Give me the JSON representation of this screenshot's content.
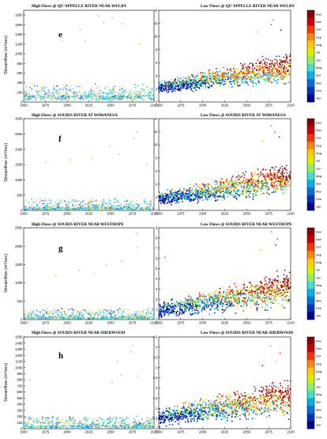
{
  "chart_data": [
    {
      "panel": "e",
      "kind": "high",
      "type": "scatter",
      "title": "High Flows @ QU'APPELLE RIVER NEAR WELBY",
      "ylabel": "Streamflow (m³/sec)",
      "ylim": [
        0,
        1900
      ],
      "yticks": [
        0,
        200,
        400,
        600,
        800,
        1000,
        1200,
        1400,
        1600,
        1800
      ],
      "xlim": [
        1950,
        2100
      ],
      "xticks": [
        1950,
        1975,
        2000,
        2025,
        2050,
        2075,
        2100
      ],
      "base_level": 150,
      "tail": 260,
      "spread": 1.0,
      "outliers": [
        [
          2036,
          1780
        ],
        [
          2052,
          1730
        ],
        [
          2042,
          1650
        ],
        [
          2064,
          1620
        ],
        [
          2015,
          1500
        ],
        [
          1994,
          1270
        ],
        [
          2021,
          1260
        ],
        [
          2083,
          1200
        ]
      ]
    },
    {
      "panel": "e",
      "kind": "low",
      "type": "scatter",
      "title": "Low Flows @ QU'APPELLE RIVER NEAR WELBY",
      "ylim": [
        0,
        14
      ],
      "yticks": [
        0,
        2,
        4,
        6,
        8,
        10,
        12,
        14
      ],
      "xlim": [
        1950,
        2100
      ],
      "xticks": [
        1950,
        1975,
        2000,
        2025,
        2050,
        2075,
        2100
      ],
      "start": 2.2,
      "end": 5.2,
      "spread": 1.3,
      "outliers": [
        [
          2080,
          12.5
        ],
        [
          2078,
          11.8
        ],
        [
          2089,
          11.0
        ],
        [
          2062,
          10.7
        ]
      ]
    },
    {
      "panel": "f",
      "kind": "high",
      "type": "scatter",
      "title": "High Flows @ SOURIS RIVER AT WAWANESA",
      "ylabel": "Streamflow (m³/sec)",
      "ylim": [
        0,
        3000
      ],
      "yticks": [
        0,
        500,
        1000,
        1500,
        2000,
        2500,
        3000
      ],
      "xlim": [
        1950,
        2100
      ],
      "xticks": [
        1950,
        1975,
        2000,
        2025,
        2050,
        2075,
        2100
      ],
      "base_level": 90,
      "tail": 330,
      "spread": 1.0,
      "outliers": [
        [
          2080,
          2560
        ],
        [
          2077,
          2350
        ],
        [
          2049,
          2100
        ],
        [
          2060,
          1830
        ],
        [
          2029,
          1700
        ],
        [
          2003,
          1650
        ],
        [
          1975,
          1580
        ],
        [
          2092,
          1500
        ]
      ]
    },
    {
      "panel": "f",
      "kind": "low",
      "type": "scatter",
      "title": "Low Flows @ SOURIS RIVER AT WAWANESA",
      "ylim": [
        0,
        14
      ],
      "yticks": [
        0,
        2,
        4,
        6,
        8,
        10,
        12,
        14
      ],
      "xlim": [
        1950,
        2100
      ],
      "xticks": [
        1950,
        1975,
        2000,
        2025,
        2050,
        2075,
        2100
      ],
      "start": 1.8,
      "end": 4.8,
      "spread": 1.4,
      "outliers": [
        [
          2078,
          12.9
        ],
        [
          2082,
          11.9
        ],
        [
          2087,
          11.2
        ],
        [
          2068,
          10.6
        ]
      ]
    },
    {
      "panel": "g",
      "kind": "high",
      "type": "scatter",
      "title": "High Flows @ SOURIS RIVER NEAR WESTHOPE",
      "ylabel": "Streamflow (m³/sec)",
      "ylim": [
        0,
        2500
      ],
      "yticks": [
        0,
        500,
        1000,
        1500,
        2000,
        2500
      ],
      "xlim": [
        1950,
        2100
      ],
      "xticks": [
        1950,
        1975,
        2000,
        2025,
        2050,
        2075,
        2100
      ],
      "base_level": 70,
      "tail": 260,
      "spread": 1.0,
      "outliers": [
        [
          2080,
          2350
        ],
        [
          2081,
          1960
        ],
        [
          2063,
          1600
        ],
        [
          2045,
          1480
        ],
        [
          2014,
          1350
        ],
        [
          2031,
          1250
        ],
        [
          1987,
          1200
        ]
      ]
    },
    {
      "panel": "g",
      "kind": "low",
      "type": "scatter",
      "title": "Low Flows @ SOURIS RIVER NEAR WESTHOPE",
      "ylim": [
        0,
        9
      ],
      "yticks": [
        0,
        1,
        2,
        3,
        4,
        5,
        6,
        7,
        8,
        9
      ],
      "xlim": [
        1950,
        2100
      ],
      "xticks": [
        1950,
        1975,
        2000,
        2025,
        2050,
        2075,
        2100
      ],
      "start": 0.9,
      "end": 3.0,
      "spread": 1.0,
      "outliers": [
        [
          2078,
          8.6
        ],
        [
          2085,
          7.9
        ],
        [
          2083,
          7.3
        ],
        [
          2066,
          6.8
        ],
        [
          1957,
          6.1
        ]
      ]
    },
    {
      "panel": "h",
      "kind": "high",
      "type": "scatter",
      "title": "High Flows @ SOURIS RIVER NEAR SHERWOOD",
      "ylabel": "Streamflow (m³/sec)",
      "ylim": [
        0,
        1500
      ],
      "yticks": [
        0,
        100,
        200,
        300,
        400,
        500,
        600,
        700,
        800,
        900,
        1000,
        1100,
        1200,
        1300,
        1400,
        1500
      ],
      "xlim": [
        1950,
        2100
      ],
      "xticks": [
        1950,
        1975,
        2000,
        2025,
        2050,
        2075,
        2100
      ],
      "base_level": 55,
      "tail": 170,
      "spread": 1.0,
      "outliers": [
        [
          2075,
          1360
        ],
        [
          2073,
          1260
        ],
        [
          2058,
          1100
        ],
        [
          2062,
          880
        ],
        [
          2082,
          860
        ],
        [
          2052,
          760
        ],
        [
          1957,
          800
        ]
      ]
    },
    {
      "panel": "h",
      "kind": "low",
      "type": "scatter",
      "title": "Low Flows @ SOURIS RIVER NEAR SHERWOOD",
      "ylim": [
        0,
        4.5
      ],
      "yticks": [
        0,
        0.5,
        1,
        1.5,
        2,
        2.5,
        3,
        3.5,
        4,
        4.5
      ],
      "xlim": [
        1950,
        2100
      ],
      "xticks": [
        1950,
        1975,
        2000,
        2025,
        2050,
        2075,
        2100
      ],
      "start": 0.55,
      "end": 1.55,
      "spread": 0.55,
      "outliers": [
        [
          2077,
          4.05
        ],
        [
          2088,
          3.7
        ],
        [
          2068,
          3.1
        ],
        [
          2083,
          3.3
        ]
      ]
    }
  ],
  "colorbar": {
    "labels": [
      "Dec",
      "Nov",
      "Oct",
      "Sep",
      "Aug",
      "Jul",
      "Jun",
      "May",
      "Apr",
      "Mar",
      "Feb",
      "Jan"
    ],
    "colors": [
      "#8b0000",
      "#cc0000",
      "#ff3300",
      "#ff8800",
      "#ffcc00",
      "#d6f000",
      "#8cf060",
      "#40e0d0",
      "#00b0f0",
      "#0070e0",
      "#0030c0",
      "#00008f"
    ],
    "high_palette": [
      "#00c4d8",
      "#22d6ee",
      "#66e0a0",
      "#a6e05a",
      "#e8d84a",
      "#4aa6f0",
      "#3060e0"
    ]
  }
}
